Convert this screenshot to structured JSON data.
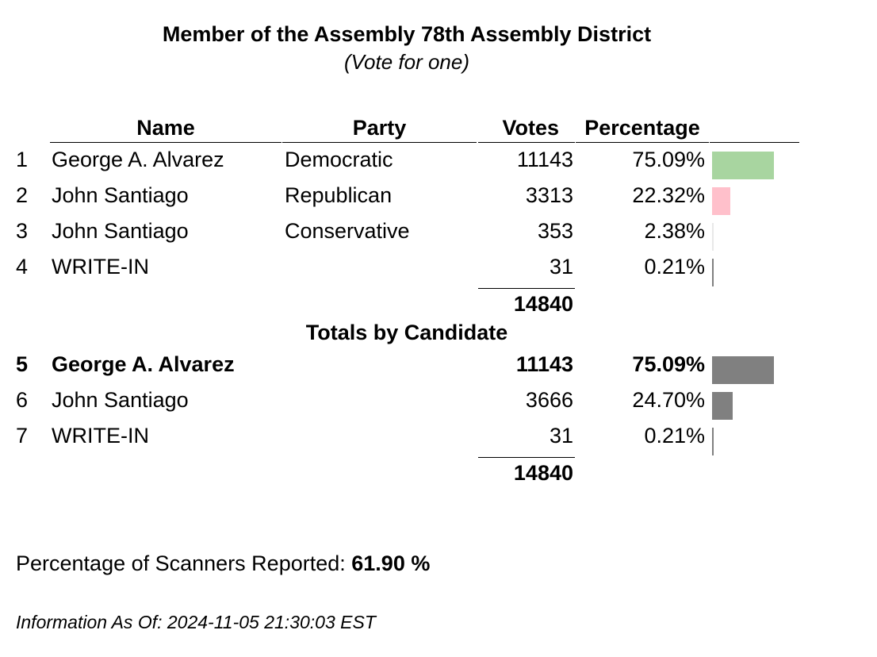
{
  "header": {
    "title": "Member of the Assembly 78th Assembly District",
    "subtitle": "(Vote for one)"
  },
  "columns": {
    "name": "Name",
    "party": "Party",
    "votes": "Votes",
    "percentage": "Percentage"
  },
  "party_rows": [
    {
      "num": "1",
      "name": "George A. Alvarez",
      "party": "Democratic",
      "votes": "11143",
      "pct": "75.09%",
      "share": 0.7509,
      "color": "#a8d5a0"
    },
    {
      "num": "2",
      "name": "John Santiago",
      "party": "Republican",
      "votes": "3313",
      "pct": "22.32%",
      "share": 0.2232,
      "color": "#ffc0cb"
    },
    {
      "num": "3",
      "name": "John Santiago",
      "party": "Conservative",
      "votes": "353",
      "pct": "2.38%",
      "share": 0.0238,
      "color": "#e8e8e8"
    },
    {
      "num": "4",
      "name": "WRITE-IN",
      "party": "",
      "votes": "31",
      "pct": "0.21%",
      "share": 0.0021,
      "color": "#808080"
    }
  ],
  "party_total": "14840",
  "candidate_section_title": "Totals by Candidate",
  "candidate_rows": [
    {
      "num": "5",
      "name": "George A. Alvarez",
      "party": "",
      "votes": "11143",
      "pct": "75.09%",
      "share": 0.7509,
      "color": "#808080",
      "bold": true
    },
    {
      "num": "6",
      "name": "John Santiago",
      "party": "",
      "votes": "3666",
      "pct": "24.70%",
      "share": 0.247,
      "color": "#808080",
      "bold": false
    },
    {
      "num": "7",
      "name": "WRITE-IN",
      "party": "",
      "votes": "31",
      "pct": "0.21%",
      "share": 0.0021,
      "color": "#808080",
      "bold": false
    }
  ],
  "candidate_total": "14840",
  "footer": {
    "scanners_label": "Percentage of Scanners Reported: ",
    "scanners_value": "61.90 %",
    "info": "Information As Of: 2024-11-05 21:30:03 EST"
  }
}
